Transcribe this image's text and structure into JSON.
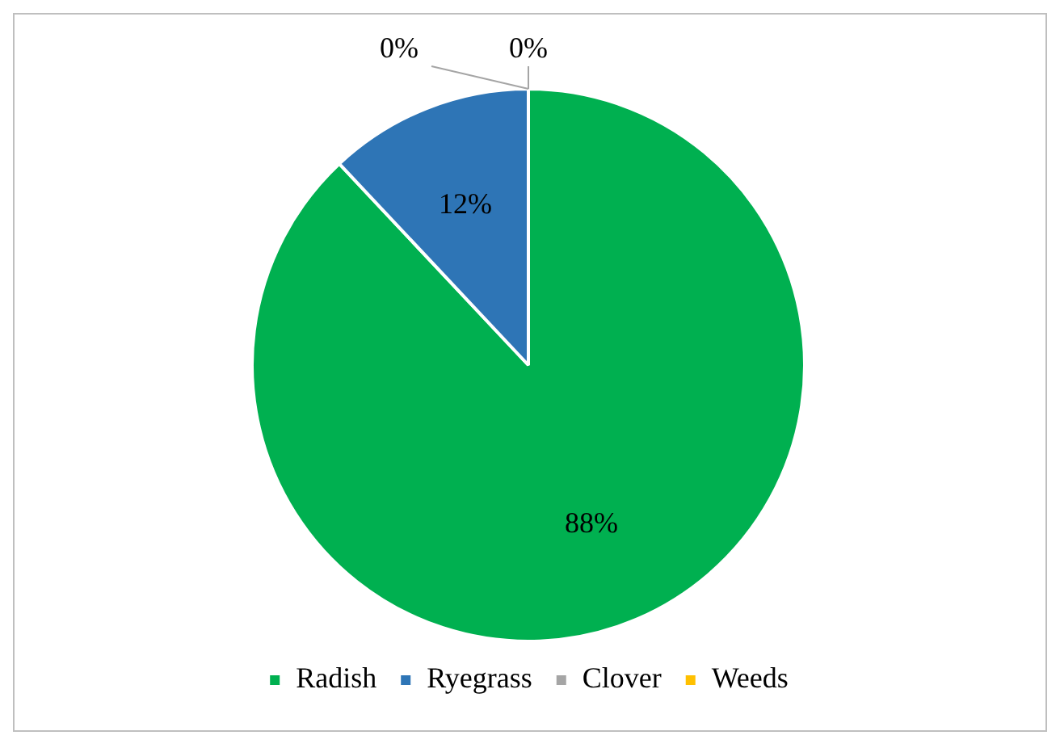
{
  "chart_data": {
    "type": "pie",
    "categories": [
      "Radish",
      "Ryegrass",
      "Clover",
      "Weeds"
    ],
    "values": [
      88,
      12,
      0,
      0
    ],
    "colors": [
      "#00b050",
      "#2e75b6",
      "#a5a5a5",
      "#ffc000"
    ],
    "value_labels": [
      "88%",
      "12%",
      "0%",
      "0%"
    ],
    "legend": "bottom"
  }
}
